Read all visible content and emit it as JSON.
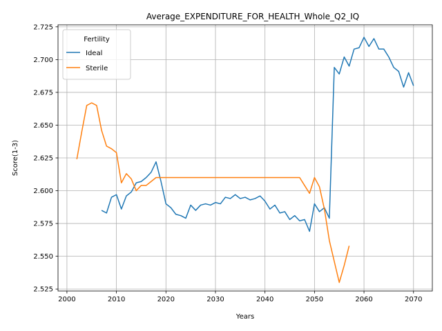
{
  "chart_data": {
    "type": "line",
    "title": "Average_EXPENDITURE_FOR_HEALTH_Whole_Q2_IQ",
    "xlabel": "Years",
    "ylabel": "Score(1-3)",
    "xlim": [
      1998.2,
      2073.8
    ],
    "ylim": [
      2.5235,
      2.7265
    ],
    "grid": true,
    "x_ticks": [
      2000,
      2010,
      2020,
      2030,
      2040,
      2050,
      2060,
      2070
    ],
    "x_tick_labels": [
      "2000",
      "2010",
      "2020",
      "2030",
      "2040",
      "2050",
      "2060",
      "2070"
    ],
    "y_ticks": [
      2.525,
      2.55,
      2.575,
      2.6,
      2.625,
      2.65,
      2.675,
      2.7,
      2.725
    ],
    "y_tick_labels": [
      "2.525",
      "2.550",
      "2.575",
      "2.600",
      "2.625",
      "2.650",
      "2.675",
      "2.700",
      "2.725"
    ],
    "legend": {
      "title": "Fertility",
      "position": "top-left"
    },
    "series": [
      {
        "name": "Ideal",
        "color": "#1f77b4",
        "x": [
          2007,
          2008,
          2009,
          2010,
          2011,
          2012,
          2013,
          2014,
          2015,
          2016,
          2017,
          2018,
          2019,
          2020,
          2021,
          2022,
          2023,
          2024,
          2025,
          2026,
          2027,
          2028,
          2029,
          2030,
          2031,
          2032,
          2033,
          2034,
          2035,
          2036,
          2037,
          2038,
          2039,
          2040,
          2041,
          2042,
          2043,
          2044,
          2045,
          2046,
          2047,
          2048,
          2049,
          2050,
          2051,
          2052,
          2053,
          2054,
          2055,
          2056,
          2057,
          2058,
          2059,
          2060,
          2061,
          2062,
          2063,
          2064,
          2065,
          2066,
          2067,
          2068,
          2069,
          2070
        ],
        "y": [
          2.585,
          2.583,
          2.595,
          2.597,
          2.586,
          2.596,
          2.599,
          2.606,
          2.607,
          2.61,
          2.614,
          2.622,
          2.607,
          2.59,
          2.587,
          2.582,
          2.581,
          2.579,
          2.589,
          2.585,
          2.589,
          2.59,
          2.589,
          2.591,
          2.59,
          2.595,
          2.594,
          2.597,
          2.594,
          2.595,
          2.593,
          2.594,
          2.596,
          2.592,
          2.586,
          2.589,
          2.583,
          2.584,
          2.578,
          2.581,
          2.577,
          2.578,
          2.569,
          2.59,
          2.584,
          2.587,
          2.579,
          2.694,
          2.689,
          2.702,
          2.695,
          2.708,
          2.709,
          2.717,
          2.71,
          2.716,
          2.708,
          2.708,
          2.702,
          2.694,
          2.691,
          2.679,
          2.69,
          2.68
        ]
      },
      {
        "name": "Sterile",
        "color": "#ff7f0e",
        "x": [
          2002,
          2003,
          2004,
          2005,
          2006,
          2007,
          2008,
          2009,
          2010,
          2011,
          2012,
          2013,
          2014,
          2015,
          2016,
          2017,
          2018,
          2019,
          2020,
          2021,
          2022,
          2023,
          2024,
          2025,
          2026,
          2027,
          2028,
          2029,
          2030,
          2031,
          2032,
          2033,
          2034,
          2035,
          2036,
          2037,
          2038,
          2039,
          2040,
          2041,
          2042,
          2043,
          2044,
          2045,
          2046,
          2047,
          2048,
          2049,
          2050,
          2051,
          2052,
          2053,
          2054,
          2055,
          2056,
          2057
        ],
        "y": [
          2.624,
          2.645,
          2.665,
          2.667,
          2.665,
          2.646,
          2.634,
          2.632,
          2.629,
          2.606,
          2.613,
          2.609,
          2.6,
          2.604,
          2.604,
          2.607,
          2.61,
          2.61,
          2.61,
          2.61,
          2.61,
          2.61,
          2.61,
          2.61,
          2.61,
          2.61,
          2.61,
          2.61,
          2.61,
          2.61,
          2.61,
          2.61,
          2.61,
          2.61,
          2.61,
          2.61,
          2.61,
          2.61,
          2.61,
          2.61,
          2.61,
          2.61,
          2.61,
          2.61,
          2.61,
          2.61,
          2.604,
          2.598,
          2.61,
          2.603,
          2.586,
          2.562,
          2.546,
          2.53,
          2.543,
          2.558
        ]
      }
    ]
  }
}
